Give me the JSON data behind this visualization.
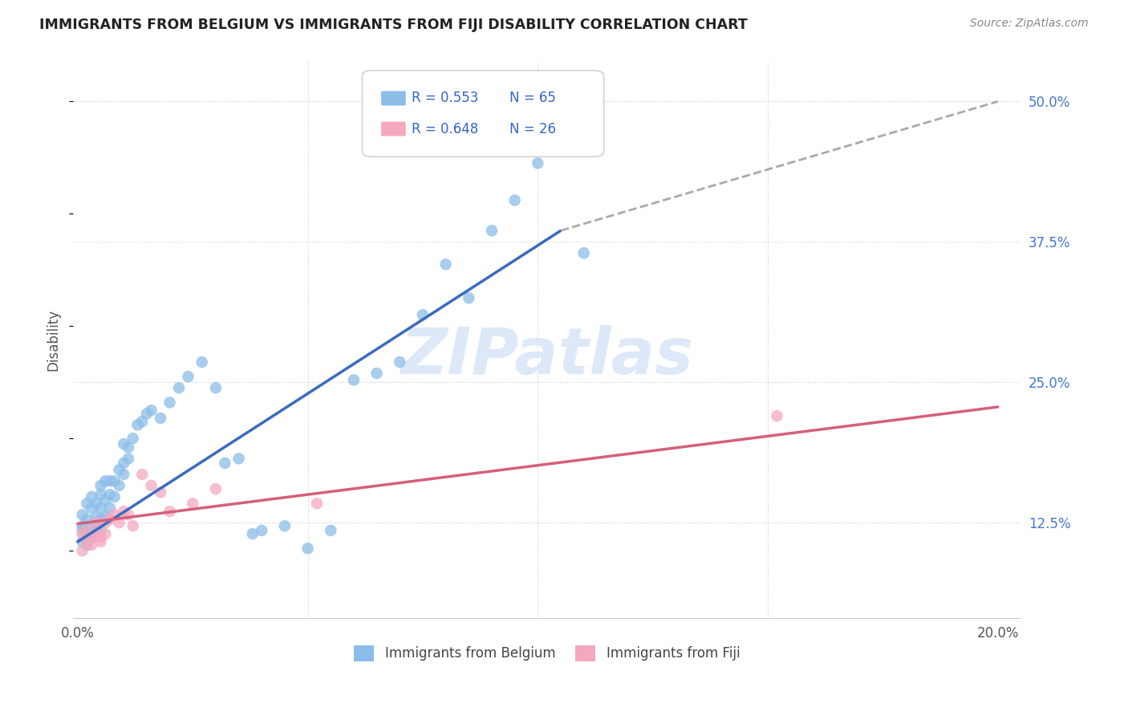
{
  "title": "IMMIGRANTS FROM BELGIUM VS IMMIGRANTS FROM FIJI DISABILITY CORRELATION CHART",
  "source": "Source: ZipAtlas.com",
  "xlabel_belgium": "Immigrants from Belgium",
  "xlabel_fiji": "Immigrants from Fiji",
  "ylabel": "Disability",
  "xlim": [
    -0.001,
    0.205
  ],
  "ylim": [
    0.04,
    0.535
  ],
  "xtick_positions": [
    0.0,
    0.05,
    0.1,
    0.15,
    0.2
  ],
  "xtick_labels": [
    "0.0%",
    "",
    "",
    "",
    "20.0%"
  ],
  "ytick_positions": [
    0.125,
    0.25,
    0.375,
    0.5
  ],
  "ytick_labels": [
    "12.5%",
    "25.0%",
    "37.5%",
    "50.0%"
  ],
  "belgium_color": "#8bbde8",
  "fiji_color": "#f4a8be",
  "belgium_line_color": "#3a6bbf",
  "fiji_line_color": "#d4607a",
  "belgium_line_x0": 0.0,
  "belgium_line_y0": 0.108,
  "belgium_line_x1": 0.105,
  "belgium_line_y1": 0.385,
  "belgium_line_ext_x1": 0.2,
  "belgium_line_ext_y1": 0.5,
  "fiji_line_x0": 0.0,
  "fiji_line_y0": 0.124,
  "fiji_line_x1": 0.2,
  "fiji_line_y1": 0.228,
  "legend_R_belgium": "R = 0.553",
  "legend_N_belgium": "N = 65",
  "legend_R_fiji": "R = 0.648",
  "legend_N_fiji": "N = 26",
  "watermark": "ZIPatlas",
  "background_color": "#ffffff",
  "grid_color": "#cccccc",
  "belgium_scatter_x": [
    0.001,
    0.001,
    0.001,
    0.001,
    0.002,
    0.002,
    0.002,
    0.002,
    0.002,
    0.003,
    0.003,
    0.003,
    0.003,
    0.004,
    0.004,
    0.004,
    0.004,
    0.005,
    0.005,
    0.005,
    0.005,
    0.005,
    0.006,
    0.006,
    0.006,
    0.007,
    0.007,
    0.007,
    0.008,
    0.008,
    0.009,
    0.009,
    0.01,
    0.01,
    0.01,
    0.011,
    0.011,
    0.012,
    0.013,
    0.014,
    0.015,
    0.016,
    0.018,
    0.02,
    0.022,
    0.024,
    0.027,
    0.03,
    0.032,
    0.035,
    0.038,
    0.04,
    0.045,
    0.05,
    0.055,
    0.06,
    0.065,
    0.07,
    0.075,
    0.08,
    0.085,
    0.09,
    0.095,
    0.1,
    0.11
  ],
  "belgium_scatter_y": [
    0.108,
    0.122,
    0.132,
    0.118,
    0.112,
    0.128,
    0.115,
    0.105,
    0.142,
    0.12,
    0.138,
    0.148,
    0.112,
    0.125,
    0.142,
    0.13,
    0.118,
    0.138,
    0.15,
    0.128,
    0.118,
    0.158,
    0.145,
    0.162,
    0.13,
    0.15,
    0.162,
    0.138,
    0.162,
    0.148,
    0.158,
    0.172,
    0.168,
    0.178,
    0.195,
    0.182,
    0.192,
    0.2,
    0.212,
    0.215,
    0.222,
    0.225,
    0.218,
    0.232,
    0.245,
    0.255,
    0.268,
    0.245,
    0.178,
    0.182,
    0.115,
    0.118,
    0.122,
    0.102,
    0.118,
    0.252,
    0.258,
    0.268,
    0.31,
    0.355,
    0.325,
    0.385,
    0.412,
    0.445,
    0.365
  ],
  "fiji_scatter_x": [
    0.001,
    0.001,
    0.002,
    0.002,
    0.003,
    0.003,
    0.004,
    0.004,
    0.005,
    0.005,
    0.006,
    0.006,
    0.007,
    0.008,
    0.009,
    0.01,
    0.011,
    0.012,
    0.014,
    0.016,
    0.018,
    0.02,
    0.025,
    0.03,
    0.052,
    0.152
  ],
  "fiji_scatter_y": [
    0.1,
    0.115,
    0.108,
    0.118,
    0.105,
    0.112,
    0.115,
    0.125,
    0.112,
    0.108,
    0.125,
    0.115,
    0.128,
    0.132,
    0.125,
    0.135,
    0.132,
    0.122,
    0.168,
    0.158,
    0.152,
    0.135,
    0.142,
    0.155,
    0.142,
    0.22
  ]
}
